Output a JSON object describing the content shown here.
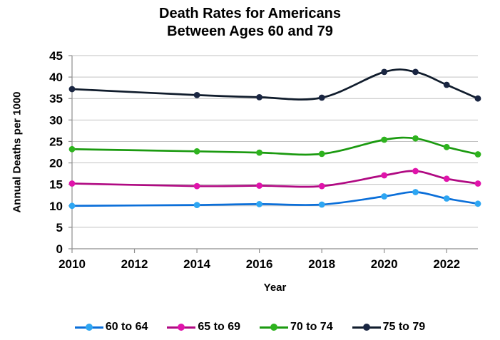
{
  "title": {
    "line1": "Death Rates for Americans",
    "line2": "Between Ages 60 and 79"
  },
  "axes": {
    "y_label": "Annual Deaths per 1000",
    "x_label": "Year",
    "y_ticks": [
      0,
      5,
      10,
      15,
      20,
      25,
      30,
      35,
      40,
      45
    ],
    "x_ticks": [
      2010,
      2012,
      2014,
      2016,
      2018,
      2020,
      2022
    ]
  },
  "colors": {
    "gridline": "#c2c2c2",
    "axis_line": "#8e8e8e",
    "text": "#000000",
    "background": "#ffffff"
  },
  "chart_data": {
    "type": "line",
    "title": "Death Rates for Americans Between Ages 60 and 79",
    "xlabel": "Year",
    "ylabel": "Annual Deaths per 1000",
    "x": [
      2010,
      2014,
      2016,
      2018,
      2020,
      2021,
      2022,
      2023
    ],
    "series": [
      {
        "name": "60 to 64",
        "line_color": "#0b6fd9",
        "marker_color": "#2ea6f2",
        "values": [
          10.0,
          10.2,
          10.4,
          10.3,
          12.2,
          13.2,
          11.7,
          10.5
        ]
      },
      {
        "name": "65 to 69",
        "line_color": "#b00982",
        "marker_color": "#e013ab",
        "values": [
          15.2,
          14.6,
          14.7,
          14.6,
          17.1,
          18.1,
          16.3,
          15.2
        ]
      },
      {
        "name": "70 to 74",
        "line_color": "#1b9a10",
        "marker_color": "#2eb31e",
        "values": [
          23.2,
          22.7,
          22.4,
          22.1,
          25.4,
          25.7,
          23.7,
          22.0
        ]
      },
      {
        "name": "75 to 79",
        "line_color": "#101c2c",
        "marker_color": "#1a2642",
        "values": [
          37.2,
          35.8,
          35.3,
          35.2,
          41.2,
          41.2,
          38.2,
          35.0
        ]
      }
    ],
    "xlim": [
      2010,
      2023
    ],
    "ylim": [
      0,
      45
    ],
    "grid": "horizontal",
    "smooth_lines": true,
    "legend_position": "bottom"
  }
}
